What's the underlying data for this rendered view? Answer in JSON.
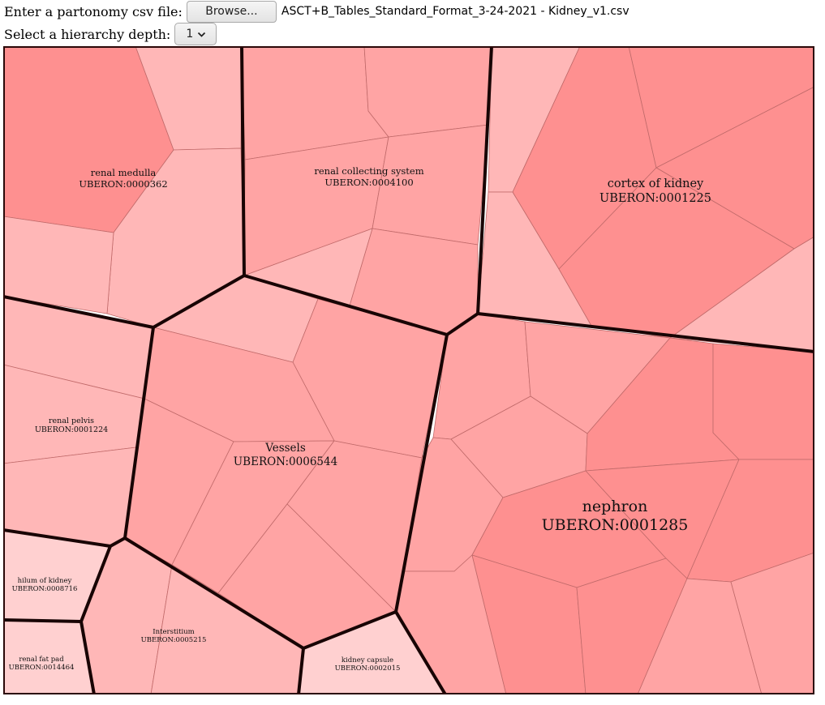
{
  "controls": {
    "file_label": "Enter a partonomy csv file:",
    "browse_label": "Browse...",
    "file_name": "ASCT+B_Tables_Standard_Format_3-24-2021 - Kidney_v1.csv",
    "depth_label": "Select a hierarchy depth:",
    "depth_value": "1"
  },
  "colors": {
    "border": "#2a0808",
    "level1_boundary": "#180404",
    "cell_edge": "#c06a6a",
    "c1": "#fe9090",
    "c2": "#fe9a9a",
    "c3": "#ffa4a4",
    "c4": "#ffb7b7",
    "c5": "#ffc0c0",
    "c6": "#ffd0d0"
  },
  "regions": [
    {
      "name": "renal medulla",
      "id": "UBERON:0000362"
    },
    {
      "name": "renal collecting system",
      "id": "UBERON:0004100"
    },
    {
      "name": "cortex of kidney",
      "id": "UBERON:0001225"
    },
    {
      "name": "renal pelvis",
      "id": "UBERON:0001224"
    },
    {
      "name": "Vessels",
      "id": "UBERON:0006544"
    },
    {
      "name": "nephron",
      "id": "UBERON:0001285"
    },
    {
      "name": "hilum of kidney",
      "id": "UBERON:0008716"
    },
    {
      "name": "Interstitium",
      "id": "UBERON:0005215"
    },
    {
      "name": "kidney capsule",
      "id": "UBERON:0002015"
    },
    {
      "name": "renal fat pad",
      "id": "UBERON:0014464"
    }
  ]
}
